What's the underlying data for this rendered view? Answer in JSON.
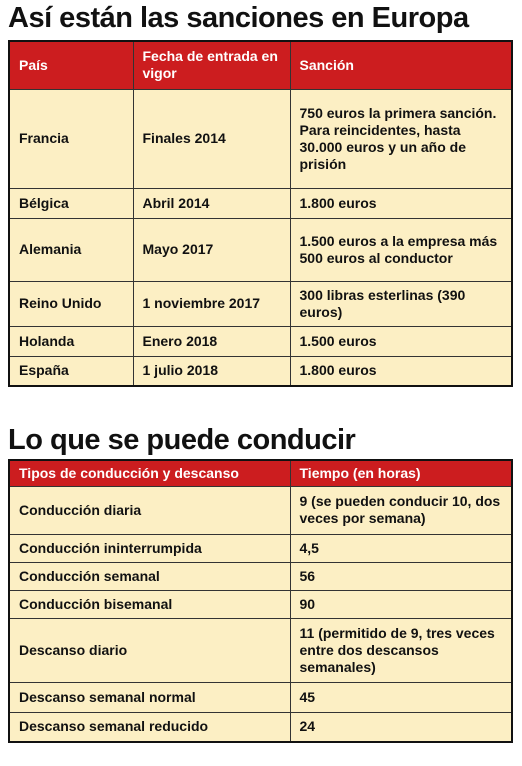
{
  "section1": {
    "title": "Así están las sanciones en Europa",
    "headers": [
      "País",
      "Fecha de entrada en vigor",
      "Sanción"
    ],
    "rows": [
      {
        "pais": "Francia",
        "fecha": "Finales 2014",
        "sancion": "750 euros la primera sanción. Para reincidentes, hasta 30.000 euros y un año de prisión"
      },
      {
        "pais": "Bélgica",
        "fecha": "Abril 2014",
        "sancion": "1.800 euros"
      },
      {
        "pais": "Alemania",
        "fecha": "Mayo 2017",
        "sancion": "1.500 euros a la empresa más 500 euros al conductor"
      },
      {
        "pais": "Reino Unido",
        "fecha": "1 noviembre 2017",
        "sancion": "300 libras esterlinas (390 euros)"
      },
      {
        "pais": "Holanda",
        "fecha": "Enero 2018",
        "sancion": "1.500 euros"
      },
      {
        "pais": "España",
        "fecha": "1 julio 2018",
        "sancion": "1.800 euros"
      }
    ]
  },
  "section2": {
    "title": "Lo que se puede conducir",
    "headers": [
      "Tipos de conducción y descanso",
      "Tiempo (en horas)"
    ],
    "rows": [
      {
        "tipo": "Conducción diaria",
        "tiempo": "9 (se pueden conducir 10, dos veces por semana)"
      },
      {
        "tipo": "Conducción ininterrumpida",
        "tiempo": "4,5"
      },
      {
        "tipo": "Conducción semanal",
        "tiempo": "56"
      },
      {
        "tipo": "Conducción bisemanal",
        "tiempo": "90"
      },
      {
        "tipo": "Descanso diario",
        "tiempo": "11 (permitido de 9, tres veces entre dos descansos semanales)"
      },
      {
        "tipo": "Descanso semanal normal",
        "tiempo": "45"
      },
      {
        "tipo": "Descanso semanal reducido",
        "tiempo": "24"
      }
    ]
  },
  "colors": {
    "header_bg": "#cc1d1f",
    "header_text": "#ffffff",
    "cell_bg": "#fcefc4",
    "border": "#111111"
  }
}
